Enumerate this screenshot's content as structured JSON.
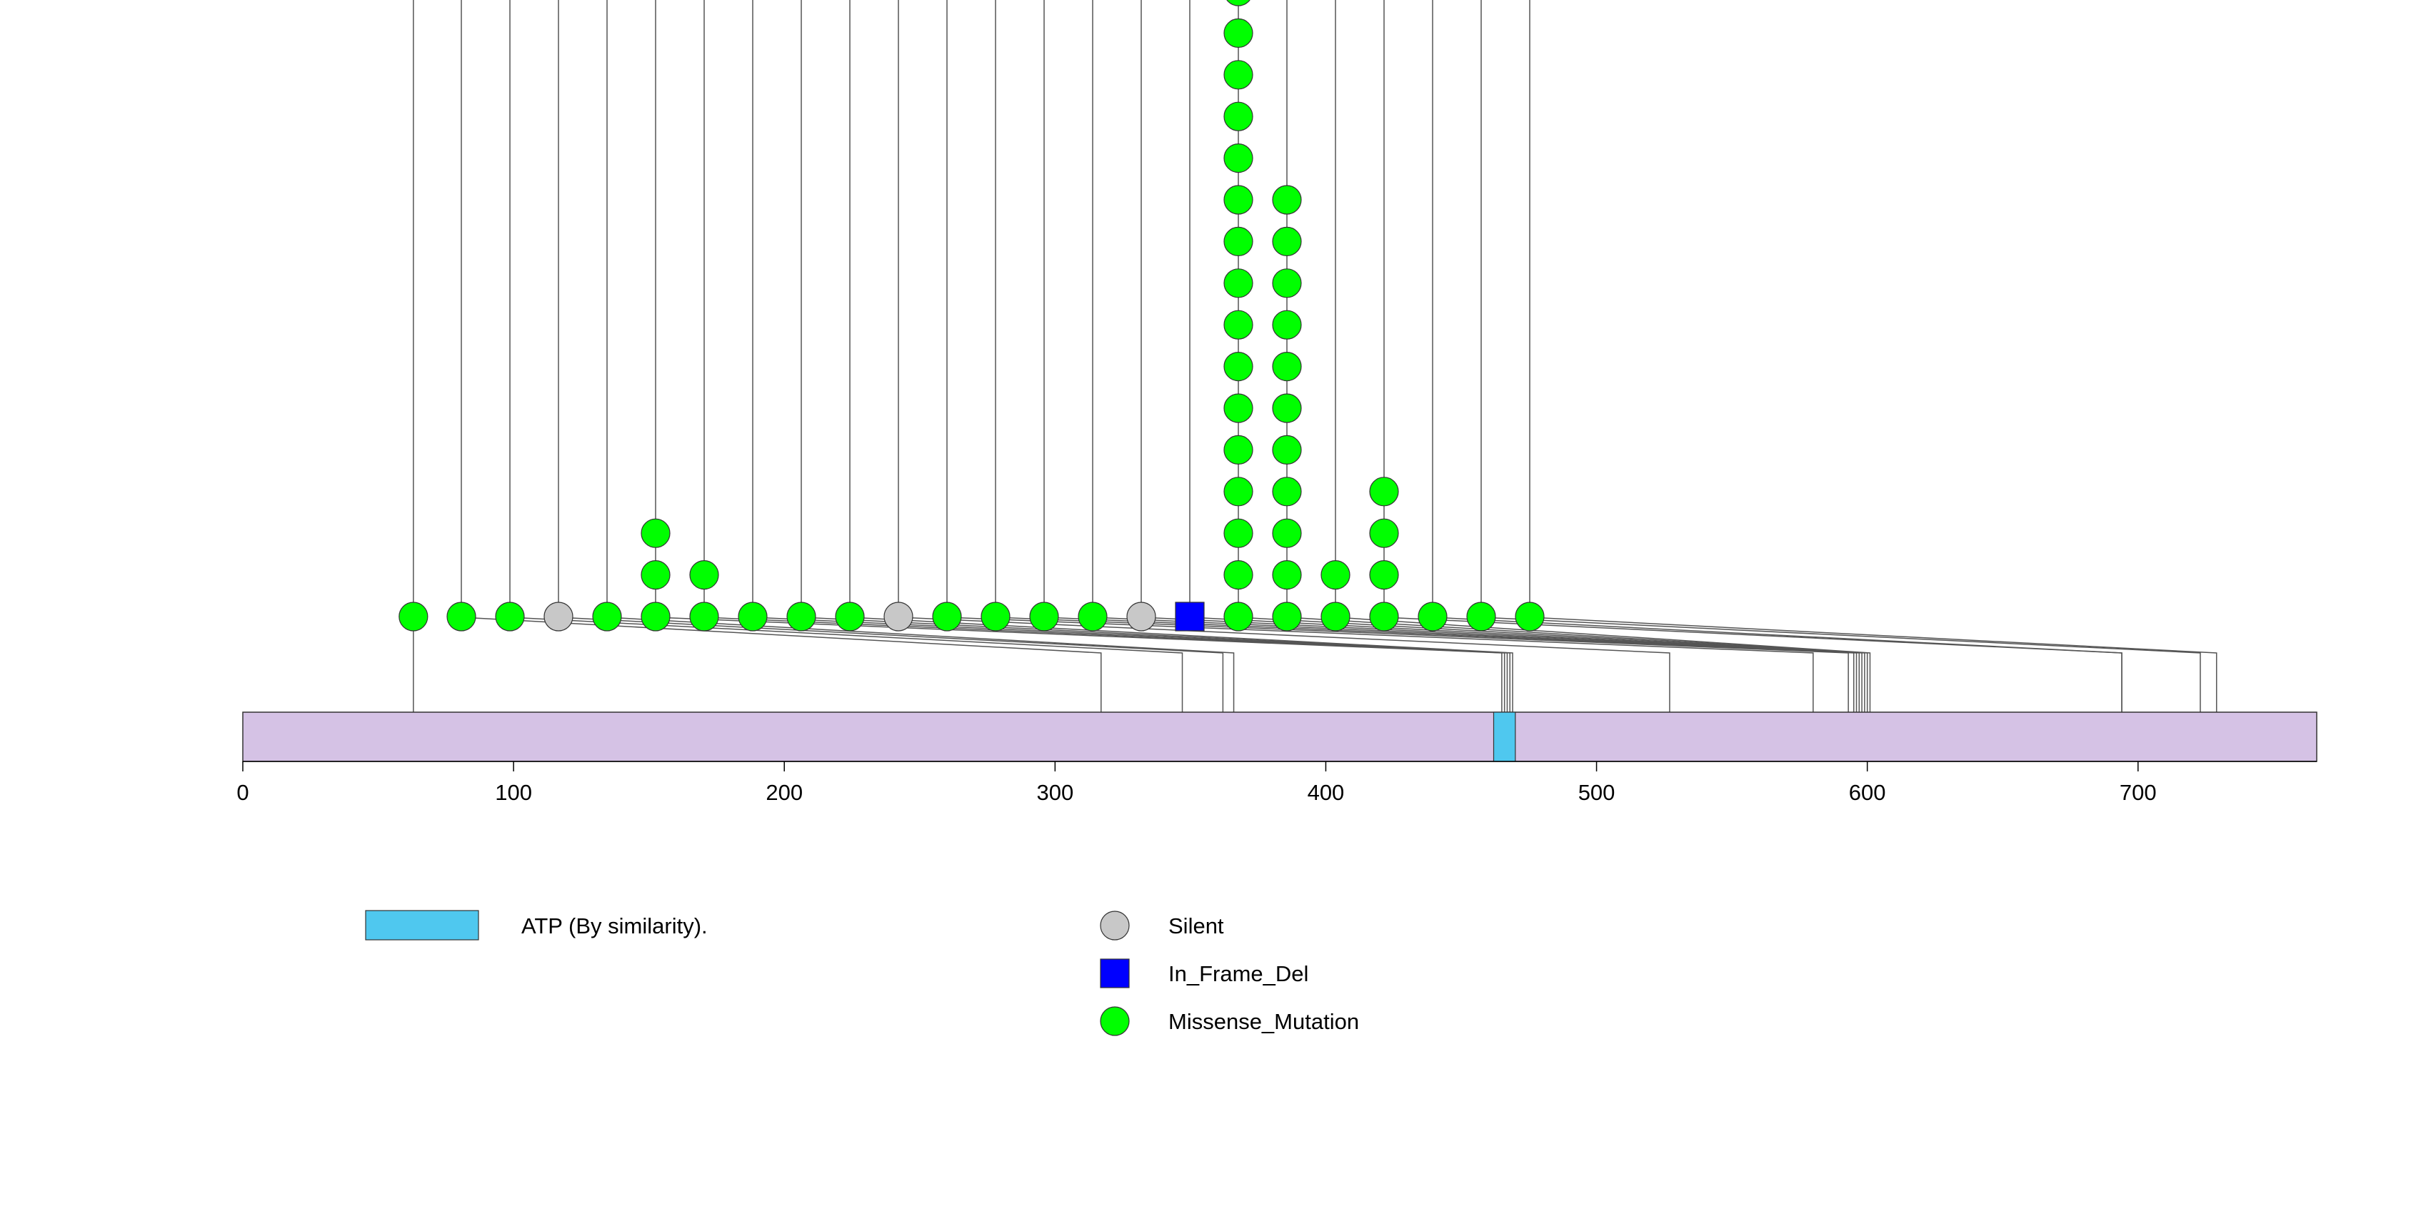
{
  "chart_data": {
    "type": "lollipop",
    "protein_length": 766,
    "axis": {
      "min": 0,
      "max": 766,
      "ticks": [
        0,
        100,
        200,
        300,
        400,
        500,
        600,
        700
      ]
    },
    "domains": [
      {
        "name": "ATP (By similarity).",
        "start": 462,
        "end": 470
      }
    ],
    "mutation_types": {
      "Silent": "#C8C8C8",
      "In_Frame_Del": "#0000FF",
      "Missense_Mutation": "#00FF00"
    },
    "mutations": [
      {
        "position": 63,
        "type": "Missense_Mutation",
        "count": 1
      },
      {
        "position": 317,
        "type": "Missense_Mutation",
        "count": 1
      },
      {
        "position": 347,
        "type": "Missense_Mutation",
        "count": 1
      },
      {
        "position": 362,
        "type": "Silent",
        "count": 1
      },
      {
        "position": 366,
        "type": "Missense_Mutation",
        "count": 1
      },
      {
        "position": 465,
        "type": "Missense_Mutation",
        "count": 3
      },
      {
        "position": 466,
        "type": "Missense_Mutation",
        "count": 2
      },
      {
        "position": 467,
        "type": "Missense_Mutation",
        "count": 1
      },
      {
        "position": 468,
        "type": "Missense_Mutation",
        "count": 1
      },
      {
        "position": 469,
        "type": "Missense_Mutation",
        "count": 1
      },
      {
        "position": 527,
        "type": "Silent",
        "count": 1
      },
      {
        "position": 580,
        "type": "Missense_Mutation",
        "count": 1
      },
      {
        "position": 593,
        "type": "Missense_Mutation",
        "count": 1
      },
      {
        "position": 595,
        "type": "Missense_Mutation",
        "count": 1
      },
      {
        "position": 596,
        "type": "Missense_Mutation",
        "count": 1
      },
      {
        "position": 597,
        "type": "Silent",
        "count": 1
      },
      {
        "position": 598,
        "type": "In_Frame_Del",
        "count": 1
      },
      {
        "position": 599,
        "type": "Missense_Mutation",
        "count": 16
      },
      {
        "position": 600,
        "type": "Missense_Mutation",
        "count": 11
      },
      {
        "position": 601,
        "type": "Missense_Mutation",
        "count": 2
      },
      {
        "position": 694,
        "type": "Missense_Mutation",
        "count": 4
      },
      {
        "position": 694,
        "type": "Missense_Mutation",
        "count": 1
      },
      {
        "position": 723,
        "type": "Missense_Mutation",
        "count": 1
      },
      {
        "position": 729,
        "type": "Missense_Mutation",
        "count": 1
      }
    ],
    "legend": {
      "domains": [
        "ATP (By similarity)."
      ],
      "types": [
        "Silent",
        "In_Frame_Del",
        "Missense_Mutation"
      ]
    }
  }
}
